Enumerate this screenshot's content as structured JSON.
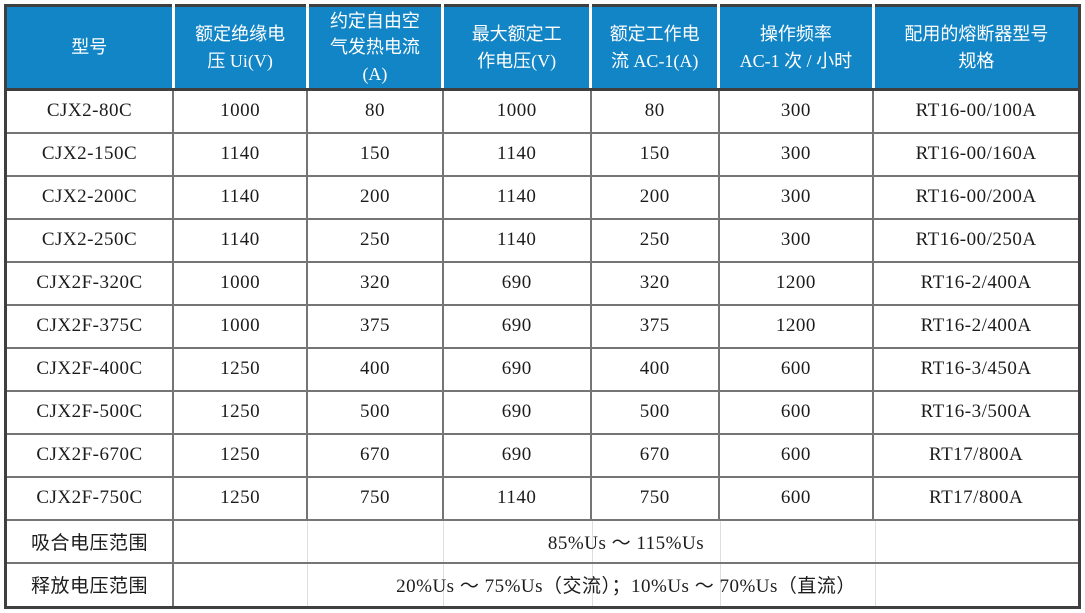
{
  "colors": {
    "header_bg": "#1285C6",
    "header_text": "#FFFFFF",
    "grid": "#757575",
    "outer_border": "#3F3F3F",
    "body_text": "#1C1C1C"
  },
  "table": {
    "headers": [
      "型号",
      "额定绝缘电\n压 Ui(V)",
      "约定自由空\n气发热电流\n(A)",
      "最大额定工\n作电压(V)",
      "额定工作电\n流 AC-1(A)",
      "操作频率\nAC-1 次 / 小时",
      "配用的熔断器型号\n规格"
    ],
    "rows": [
      [
        "CJX2-80C",
        "1000",
        "80",
        "1000",
        "80",
        "300",
        "RT16-00/100A"
      ],
      [
        "CJX2-150C",
        "1140",
        "150",
        "1140",
        "150",
        "300",
        "RT16-00/160A"
      ],
      [
        "CJX2-200C",
        "1140",
        "200",
        "1140",
        "200",
        "300",
        "RT16-00/200A"
      ],
      [
        "CJX2-250C",
        "1140",
        "250",
        "1140",
        "250",
        "300",
        "RT16-00/250A"
      ],
      [
        "CJX2F-320C",
        "1000",
        "320",
        "690",
        "320",
        "1200",
        "RT16-2/400A"
      ],
      [
        "CJX2F-375C",
        "1000",
        "375",
        "690",
        "375",
        "1200",
        "RT16-2/400A"
      ],
      [
        "CJX2F-400C",
        "1250",
        "400",
        "690",
        "400",
        "600",
        "RT16-3/450A"
      ],
      [
        "CJX2F-500C",
        "1250",
        "500",
        "690",
        "500",
        "600",
        "RT16-3/500A"
      ],
      [
        "CJX2F-670C",
        "1250",
        "670",
        "690",
        "670",
        "600",
        "RT17/800A"
      ],
      [
        "CJX2F-750C",
        "1250",
        "750",
        "1140",
        "750",
        "600",
        "RT17/800A"
      ]
    ],
    "footer_rows": [
      {
        "label": "吸合电压范围",
        "value": "85%Us ～ 115%Us"
      },
      {
        "label": "释放电压范围",
        "value": "20%Us ～ 75%Us（交流）；10%Us ～ 70%Us（直流）"
      }
    ]
  }
}
